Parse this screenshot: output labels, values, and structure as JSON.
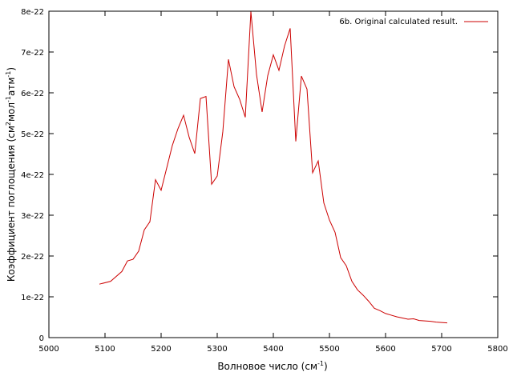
{
  "chart_data": {
    "type": "line",
    "title": "",
    "xlabel": "Волновое число (см",
    "xlabel_sup": "-1",
    "xlabel_end": ")",
    "ylabel_parts": [
      "Коэффициент поглощения (см",
      "2",
      "мол",
      "-1",
      "атм",
      "-1",
      ")"
    ],
    "xlim": [
      5000,
      5800
    ],
    "ylim": [
      0,
      8e-22
    ],
    "x_ticks": [
      5000,
      5100,
      5200,
      5300,
      5400,
      5500,
      5600,
      5700,
      5800
    ],
    "x_tick_labels": [
      "5000",
      "5100",
      "5200",
      "5300",
      "5400",
      "5500",
      "5600",
      "5700",
      "5800"
    ],
    "y_ticks": [
      0,
      1e-22,
      2e-22,
      3e-22,
      4e-22,
      5e-22,
      6e-22,
      7e-22,
      8e-22
    ],
    "y_tick_labels": [
      "0",
      "1e-22",
      "2e-22",
      "3e-22",
      "4e-22",
      "5e-22",
      "6e-22",
      "7e-22",
      "8e-22"
    ],
    "grid": false,
    "legend_position": "top-right",
    "series": [
      {
        "name": "6b. Original calculated result.",
        "color": "#cc0000",
        "x": [
          5090,
          5110,
          5130,
          5140,
          5150,
          5160,
          5170,
          5180,
          5190,
          5200,
          5210,
          5220,
          5230,
          5240,
          5250,
          5260,
          5270,
          5280,
          5290,
          5300,
          5310,
          5320,
          5330,
          5340,
          5350,
          5360,
          5370,
          5380,
          5390,
          5400,
          5410,
          5420,
          5430,
          5440,
          5450,
          5460,
          5470,
          5480,
          5490,
          5500,
          5510,
          5520,
          5530,
          5540,
          5550,
          5560,
          5570,
          5580,
          5590,
          5600,
          5610,
          5620,
          5630,
          5640,
          5650,
          5660,
          5670,
          5680,
          5690,
          5700,
          5710
        ],
        "y": [
          1.31e-22,
          1.38e-22,
          1.62e-22,
          1.88e-22,
          1.92e-22,
          2.12e-22,
          2.64e-22,
          2.84e-22,
          3.87e-22,
          3.61e-22,
          4.16e-22,
          4.71e-22,
          5.12e-22,
          5.45e-22,
          4.91e-22,
          4.51e-22,
          5.86e-22,
          5.91e-22,
          3.76e-22,
          3.96e-22,
          5.05e-22,
          6.82e-22,
          6.15e-22,
          5.84e-22,
          5.4e-22,
          7.99e-22,
          6.45e-22,
          5.53e-22,
          6.42e-22,
          6.93e-22,
          6.55e-22,
          7.15e-22,
          7.58e-22,
          4.81e-22,
          6.41e-22,
          6.09e-22,
          4.04e-22,
          4.33e-22,
          3.3e-22,
          2.88e-22,
          2.58e-22,
          1.96e-22,
          1.76e-22,
          1.38e-22,
          1.17e-22,
          1.04e-22,
          8.9e-23,
          7.2e-23,
          6.6e-23,
          5.9e-23,
          5.5e-23,
          5.1e-23,
          4.8e-23,
          4.5e-23,
          4.6e-23,
          4.2e-23,
          4.1e-23,
          4e-23,
          3.8e-23,
          3.7e-23,
          3.6e-23
        ]
      }
    ]
  }
}
